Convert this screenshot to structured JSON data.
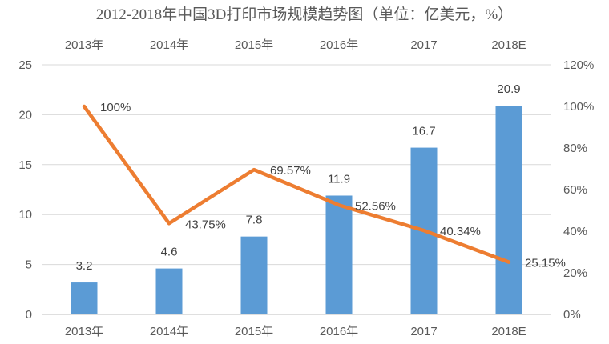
{
  "chart_data": {
    "type": "bar",
    "title": "2012-2018年中国3D打印市场规模趋势图（单位：亿美元，%）",
    "categories": [
      "2013年",
      "2014年",
      "2015年",
      "2016年",
      "2017",
      "2018E"
    ],
    "top_categories": [
      "2013年",
      "2014年",
      "2015年",
      "2016年",
      "2017",
      "2018E"
    ],
    "series": [
      {
        "type": "bar",
        "axis": "left",
        "values": [
          3.2,
          4.6,
          7.8,
          11.9,
          16.7,
          20.9
        ],
        "labels": [
          "3.2",
          "4.6",
          "7.8",
          "11.9",
          "16.7",
          "20.9"
        ],
        "color": "#5b9bd5"
      },
      {
        "type": "line",
        "axis": "right",
        "values": [
          100,
          43.75,
          69.57,
          52.56,
          40.34,
          25.15
        ],
        "labels": [
          "100%",
          "43.75%",
          "69.57%",
          "52.56%",
          "40.34%",
          "25.15%"
        ],
        "color": "#ed7d31"
      }
    ],
    "y_left": {
      "range": [
        0,
        25
      ],
      "ticks": [
        "0",
        "5",
        "10",
        "15",
        "20",
        "25"
      ]
    },
    "y_right": {
      "range": [
        0,
        120
      ],
      "ticks": [
        "0%",
        "20%",
        "40%",
        "60%",
        "80%",
        "100%",
        "120%"
      ]
    },
    "grid": true,
    "legend": "none"
  }
}
